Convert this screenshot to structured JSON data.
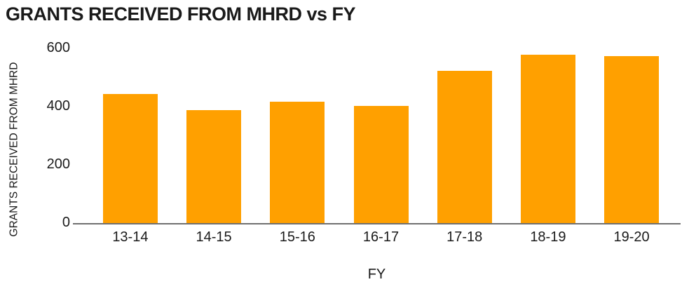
{
  "chart_data": {
    "type": "bar",
    "title": "GRANTS RECEIVED FROM MHRD vs FY",
    "xlabel": "FY",
    "ylabel": "GRANTS RECEIVED FROM MHRD",
    "categories": [
      "13-14",
      "14-15",
      "15-16",
      "16-17",
      "17-18",
      "18-19",
      "19-20"
    ],
    "values": [
      445,
      390,
      420,
      405,
      525,
      580,
      575
    ],
    "ylim": [
      0,
      600
    ],
    "yticks": [
      0,
      200,
      400,
      600
    ],
    "grid": "off",
    "legend": "none",
    "bar_color": "#FFA000",
    "axis_line_color": "#707070",
    "text_color": "#1a1a1a"
  }
}
